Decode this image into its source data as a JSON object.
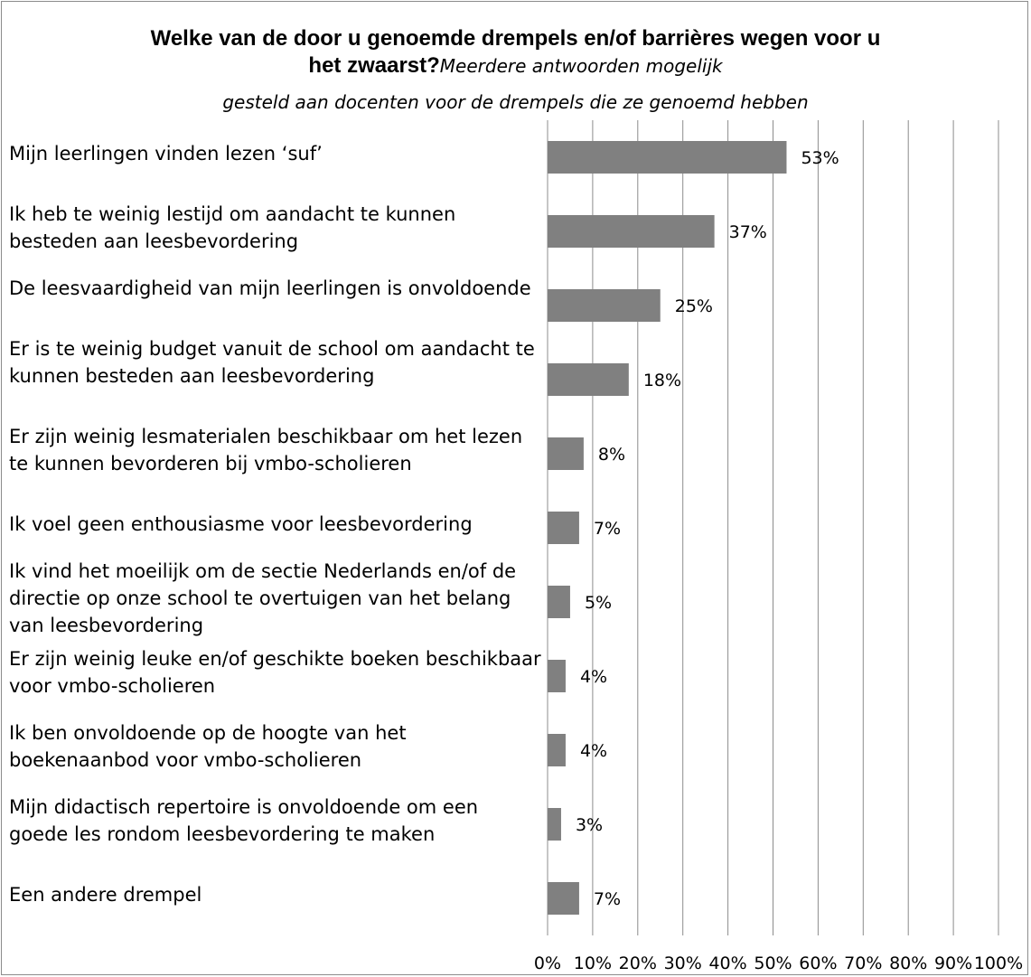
{
  "chart_data": {
    "type": "bar",
    "orientation": "horizontal",
    "title_line1": "Welke van de door u genoemde drempels en/of barrières wegen voor u",
    "title_line2": "het zwaarst?",
    "subtitle_part": "Meerdere antwoorden mogelijk",
    "subtitle_line2": "gesteld aan docenten voor de drempels die ze genoemd hebben",
    "categories": [
      "Mijn leerlingen vinden lezen ‘suf’",
      "Ik heb te weinig lestijd om aandacht te kunnen besteden aan leesbevordering",
      "De leesvaardigheid van mijn leerlingen is onvoldoende",
      "Er is te weinig budget vanuit de school om aandacht te kunnen besteden aan leesbevordering",
      "Er zijn weinig lesmaterialen beschikbaar om het lezen te kunnen bevorderen bij vmbo-scholieren",
      "Ik voel geen enthousiasme voor leesbevordering",
      "Ik vind het moeilijk om de sectie Nederlands en/of de directie op onze school te overtuigen van het belang van leesbevordering",
      "Er zijn weinig leuke en/of geschikte boeken beschikbaar voor vmbo-scholieren",
      "Ik ben onvoldoende op de hoogte van het boekenaanbod voor vmbo-scholieren",
      "Mijn didactisch repertoire is onvoldoende om een goede les rondom leesbevordering te maken",
      "Een andere drempel"
    ],
    "values": [
      53,
      37,
      25,
      18,
      8,
      7,
      5,
      4,
      4,
      3,
      7
    ],
    "value_labels": [
      "53%",
      "37%",
      "25%",
      "18%",
      "8%",
      "7%",
      "5%",
      "4%",
      "4%",
      "3%",
      "7%"
    ],
    "x_ticks": [
      "0%",
      "10%",
      "20%",
      "30%",
      "40%",
      "50%",
      "60%",
      "70%",
      "80%",
      "90%",
      "100%"
    ],
    "xlim": [
      0,
      100
    ],
    "grid": true,
    "bar_color": "#808080",
    "grid_color": "#8c8c8c"
  }
}
